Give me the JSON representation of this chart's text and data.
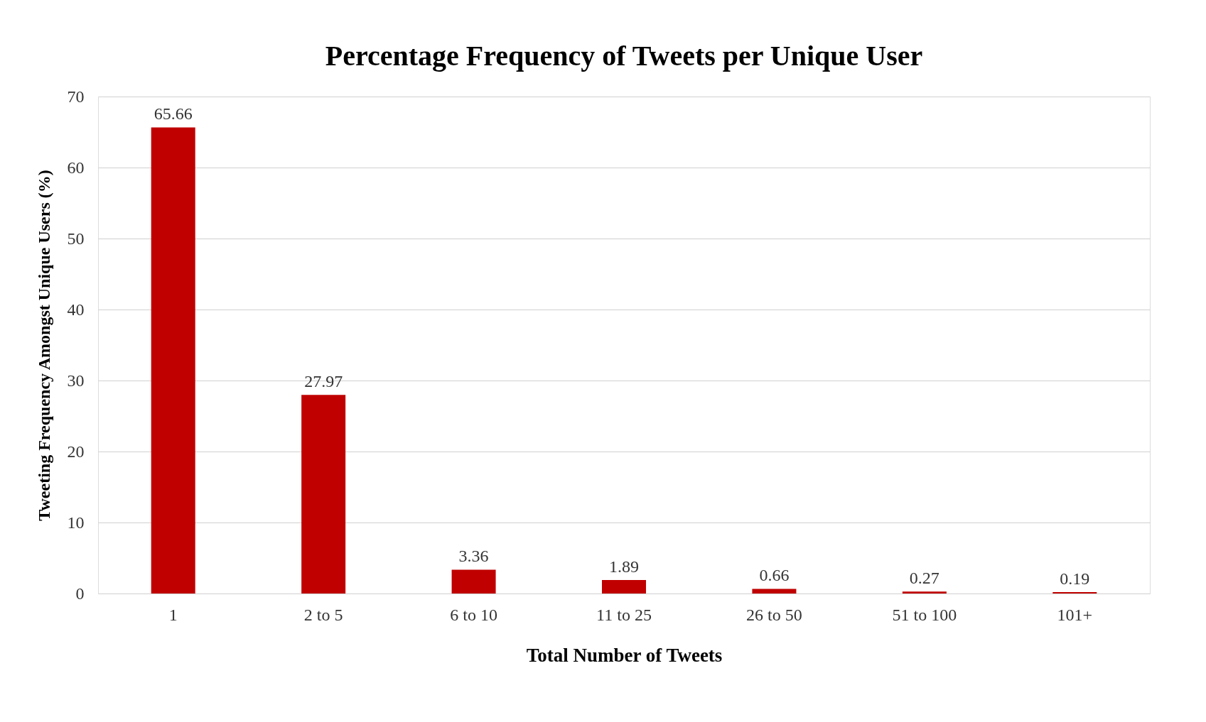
{
  "chart_data": {
    "type": "bar",
    "title": "Percentage Frequency of Tweets per Unique User",
    "xlabel": "Total Number of Tweets",
    "ylabel": "Tweeting Frequency Amongst Unique Users (%)",
    "categories": [
      "1",
      "2 to 5",
      "6 to 10",
      "11 to 25",
      "26 to 50",
      "51 to 100",
      "101+"
    ],
    "values": [
      65.66,
      27.97,
      3.36,
      1.89,
      0.66,
      0.27,
      0.19
    ],
    "color": "#c00000",
    "ylim": [
      0,
      70
    ],
    "yticks": [
      0,
      10,
      20,
      30,
      40,
      50,
      60,
      70
    ],
    "grid": "y",
    "data_labels": true
  }
}
